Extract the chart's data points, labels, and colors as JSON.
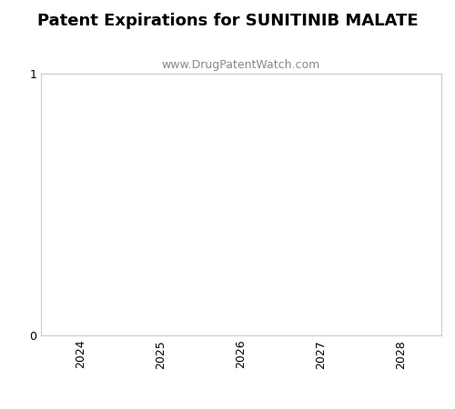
{
  "title": "Patent Expirations for SUNITINIB MALATE",
  "subtitle": "www.DrugPatentWatch.com",
  "title_fontsize": 13,
  "subtitle_fontsize": 9,
  "title_fontweight": "bold",
  "xlim": [
    2023.5,
    2028.5
  ],
  "ylim": [
    0,
    1
  ],
  "x_ticks": [
    2024,
    2025,
    2026,
    2027,
    2028
  ],
  "y_ticks": [
    0,
    1
  ],
  "background_color": "#ffffff",
  "axes_edgecolor": "#cccccc",
  "tick_labelsize": 9,
  "subtitle_color": "#888888"
}
